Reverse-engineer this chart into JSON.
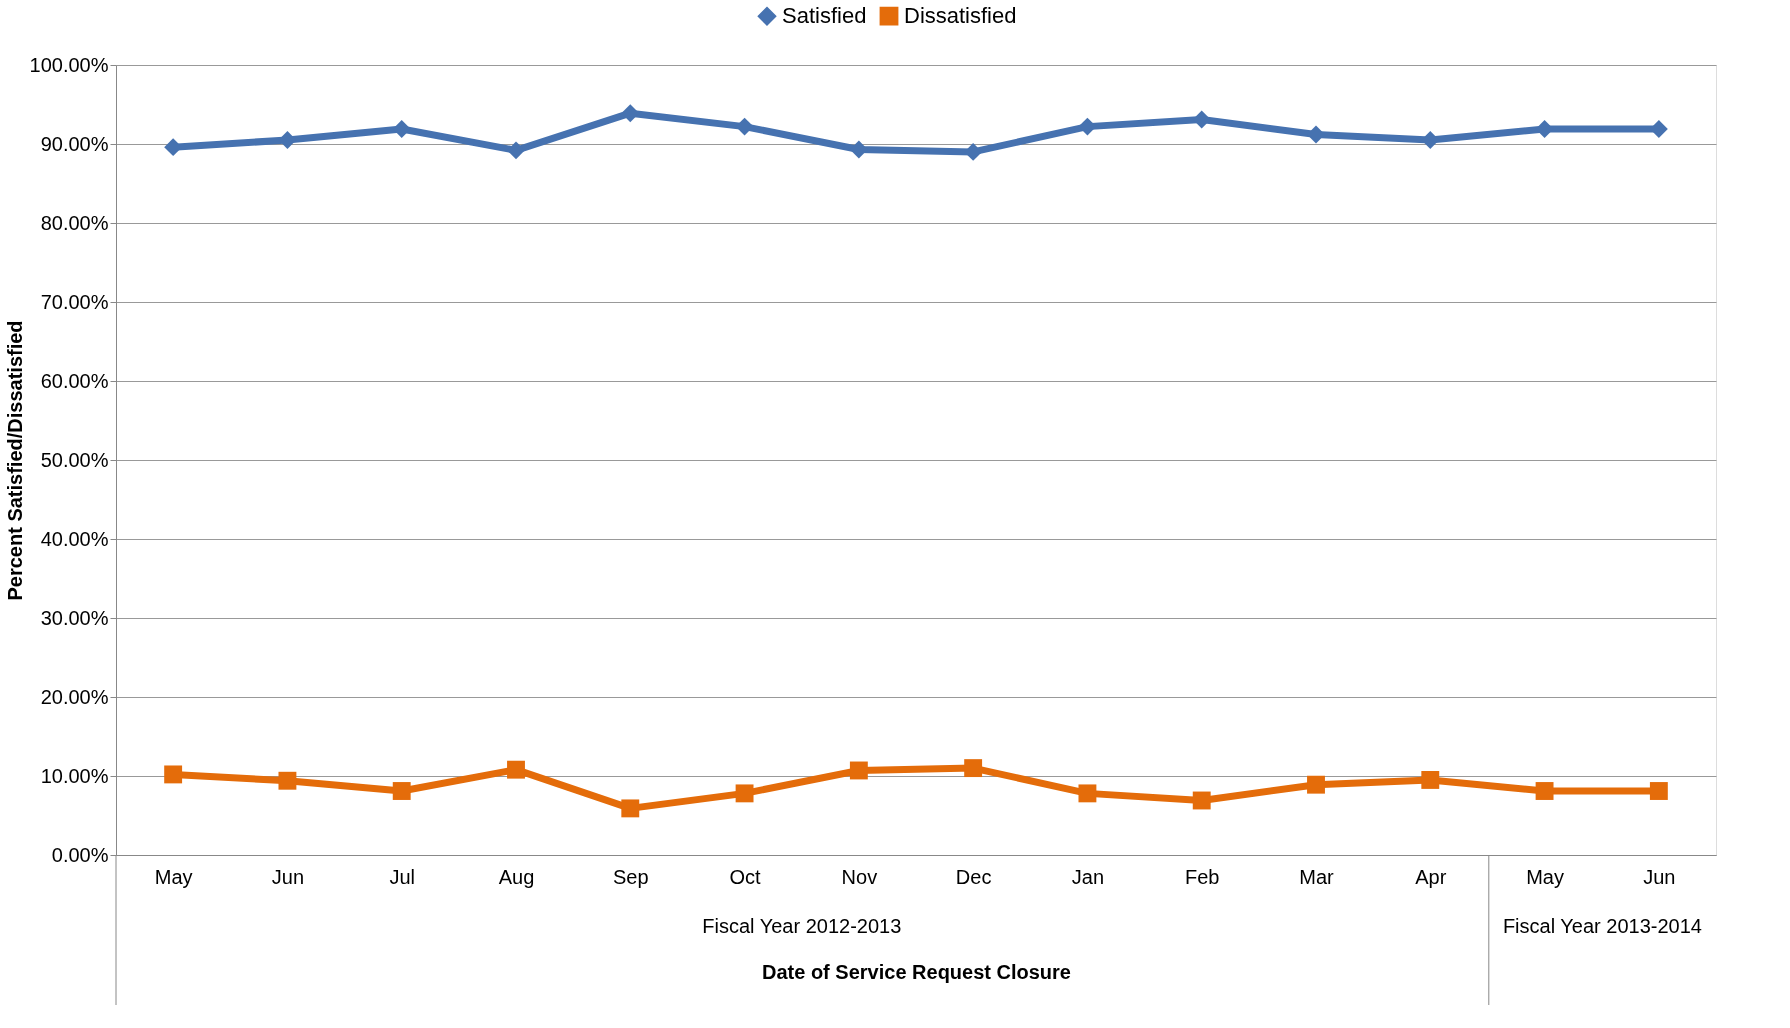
{
  "chart_data": {
    "type": "line",
    "xlabel": "Date of Service Request Closure",
    "ylabel": "Percent Satisfied/Dissatisfied",
    "categories": [
      "May",
      "Jun",
      "Jul",
      "Aug",
      "Sep",
      "Oct",
      "Nov",
      "Dec",
      "Jan",
      "Feb",
      "Mar",
      "Apr",
      "May",
      "Jun"
    ],
    "series": [
      {
        "name": "Satisfied",
        "color": "#4672b0",
        "marker": "diamond",
        "values": [
          89.6,
          90.5,
          91.9,
          89.2,
          93.9,
          92.2,
          89.3,
          89.0,
          92.2,
          93.1,
          91.2,
          90.5,
          91.9,
          91.9
        ]
      },
      {
        "name": "Dissatisfied",
        "color": "#e46c0a",
        "marker": "square",
        "values": [
          10.2,
          9.4,
          8.1,
          10.8,
          5.9,
          7.8,
          10.7,
          11.0,
          7.8,
          6.9,
          8.9,
          9.5,
          8.1,
          8.1
        ]
      }
    ],
    "ylim": [
      0,
      100
    ],
    "yticks": [
      {
        "value": 0,
        "label": "0.00%"
      },
      {
        "value": 10,
        "label": "10.00%"
      },
      {
        "value": 20,
        "label": "20.00%"
      },
      {
        "value": 30,
        "label": "30.00%"
      },
      {
        "value": 40,
        "label": "40.00%"
      },
      {
        "value": 50,
        "label": "50.00%"
      },
      {
        "value": 60,
        "label": "60.00%"
      },
      {
        "value": 70,
        "label": "70.00%"
      },
      {
        "value": 80,
        "label": "80.00%"
      },
      {
        "value": 90,
        "label": "90.00%"
      },
      {
        "value": 100,
        "label": "100.00%"
      }
    ],
    "annotations": [
      "Fiscal Year 2012-2013",
      "Fiscal Year 2013-2014"
    ],
    "grid": "y",
    "legend": "top",
    "line_style": "solid"
  }
}
